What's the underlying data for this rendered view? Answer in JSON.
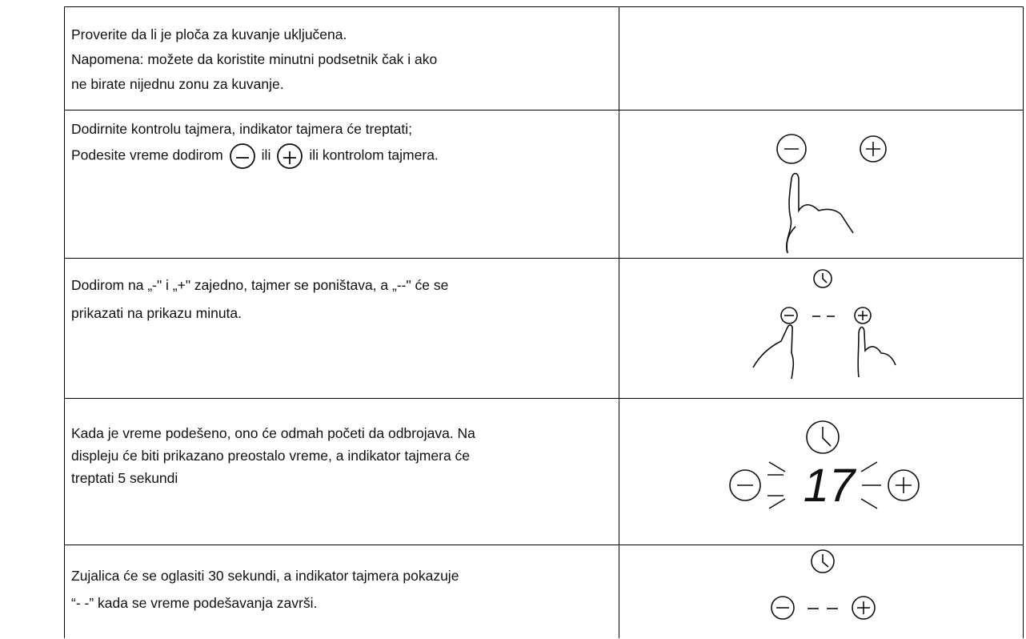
{
  "rows": [
    {
      "lines": [
        "Proverite da li je ploča za kuvanje uključena.",
        "Napomena: možete da koristite minutni podsetnik čak i ako",
        "ne birate nijednu zonu za kuvanje."
      ]
    },
    {
      "lines": [
        "Dodirnite kontrolu tajmera, indikator tajmera će treptati;"
      ],
      "line2": [
        "Podesite vreme dodirom",
        "ili",
        "ili kontrolom tajmera."
      ]
    },
    {
      "lines": [
        "Dodirom na „-\" i „+\" zajedno, tajmer se poništava, a „--\" će se",
        "prikazati na prikazu minuta."
      ]
    },
    {
      "lines": [
        "Kada je vreme podešeno, ono će odmah početi da odbrojava. Na",
        "displeju će biti prikazano preostalo vreme, a indikator tajmera će",
        "treptati 5 sekundi"
      ],
      "display": "17"
    },
    {
      "lines": [
        "Zujalica će se oglasiti 30 sekundi, a indikator tajmera pokazuje",
        "“- -” kada se vreme podešavanja završi."
      ]
    }
  ]
}
